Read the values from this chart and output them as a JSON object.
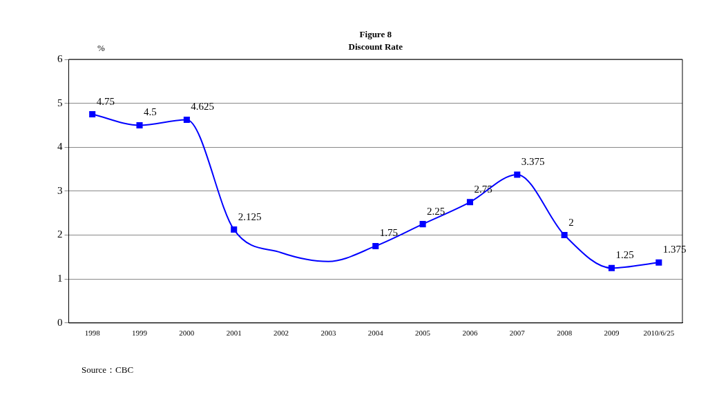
{
  "chart_data": {
    "type": "line",
    "title": "Figure 8",
    "subtitle": "Discount Rate",
    "ylabel": "%",
    "categories": [
      "1998",
      "1999",
      "2000",
      "2001",
      "2002",
      "2003",
      "2004",
      "2005",
      "2006",
      "2007",
      "2008",
      "2009",
      "2010/6/25"
    ],
    "series": [
      {
        "color": "#0000ff",
        "values": [
          4.75,
          4.5,
          4.625,
          2.125,
          1.6,
          1.4,
          1.75,
          2.25,
          2.75,
          3.375,
          2,
          1.25,
          1.375
        ],
        "value_labels": [
          "4.75",
          "4.5",
          "4.625",
          "2.125",
          null,
          null,
          "1.75",
          "2.25",
          "2.75",
          "3.375",
          "2",
          "1.25",
          "1.375"
        ]
      }
    ],
    "ylim": [
      0,
      6
    ],
    "yticks": [
      0,
      1,
      2,
      3,
      4,
      5,
      6
    ],
    "grid": "y",
    "legend": false,
    "marker": "square",
    "line_style": "solid",
    "annotations": [
      "Source：CBC"
    ]
  }
}
